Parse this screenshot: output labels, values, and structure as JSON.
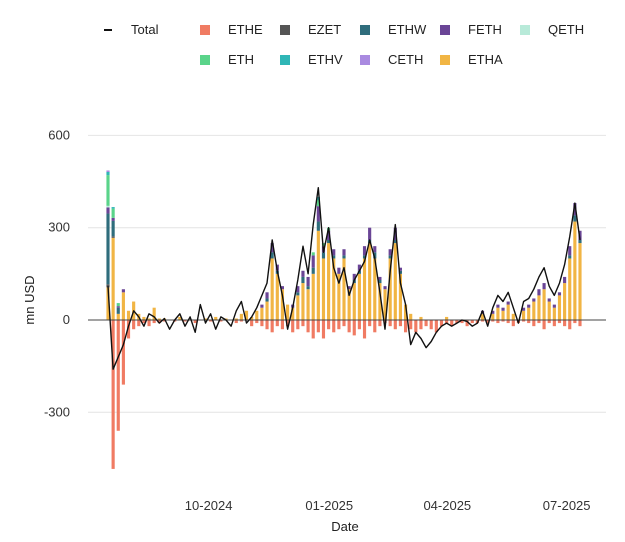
{
  "chart_data": {
    "type": "bar",
    "stacked": true,
    "title": "",
    "xlabel": "Date",
    "ylabel": "mn USD",
    "ylim": [
      -520,
      650
    ],
    "yticks": [
      -300,
      0,
      300,
      600
    ],
    "grid": true,
    "legend_position": "top",
    "x_range": [
      "2024-07-01",
      "2025-07-31"
    ],
    "xticks": [
      {
        "date": "2024-10-01",
        "label": "10-2024"
      },
      {
        "date": "2025-01-01",
        "label": "01-2025"
      },
      {
        "date": "2025-04-01",
        "label": "04-2025"
      },
      {
        "date": "2025-07-01",
        "label": "07-2025"
      }
    ],
    "legend": [
      {
        "name": "Total",
        "kind": "line",
        "color": "#111111"
      },
      {
        "name": "ETHE",
        "kind": "box",
        "color": "#f07b63"
      },
      {
        "name": "EZET",
        "kind": "box",
        "color": "#555555"
      },
      {
        "name": "ETHW",
        "kind": "box",
        "color": "#2f6d7c"
      },
      {
        "name": "FETH",
        "kind": "box",
        "color": "#6a4596"
      },
      {
        "name": "QETH",
        "kind": "box",
        "color": "#b8ead9"
      },
      {
        "name": "ETH",
        "kind": "box",
        "color": "#5ad48a"
      },
      {
        "name": "ETHV",
        "kind": "box",
        "color": "#2fb6b6"
      },
      {
        "name": "CETH",
        "kind": "box",
        "color": "#a98ae0"
      },
      {
        "name": "ETHA",
        "kind": "box",
        "color": "#f1b544"
      }
    ],
    "series": [
      {
        "name": "ETHA",
        "values": [
          106,
          267,
          20,
          90,
          30,
          60,
          20,
          10,
          5,
          40,
          5,
          5,
          0,
          0,
          10,
          0,
          0,
          0,
          0,
          5,
          0,
          10,
          0,
          5,
          0,
          5,
          20,
          30,
          10,
          30,
          40,
          60,
          200,
          150,
          100,
          50,
          40,
          80,
          120,
          100,
          150,
          290,
          200,
          250,
          200,
          150,
          200,
          100,
          120,
          150,
          200,
          250,
          200,
          120,
          100,
          200,
          250,
          150,
          50,
          20,
          0,
          10,
          0,
          0,
          0,
          0,
          10,
          0,
          0,
          0,
          0,
          0,
          0,
          20,
          0,
          20,
          40,
          30,
          50,
          20,
          0,
          30,
          40,
          60,
          80,
          100,
          60,
          40,
          80,
          120,
          200,
          320,
          250
        ]
      },
      {
        "name": "ETHE",
        "values": [
          0,
          -484,
          -360,
          -210,
          -60,
          -30,
          -20,
          -10,
          -20,
          -10,
          -10,
          -5,
          0,
          -5,
          0,
          -5,
          0,
          -10,
          0,
          0,
          -5,
          0,
          -5,
          0,
          0,
          -10,
          -5,
          0,
          -20,
          -10,
          -20,
          -30,
          -40,
          -20,
          -30,
          -20,
          -40,
          -30,
          -20,
          -40,
          -60,
          -40,
          -60,
          -30,
          -40,
          -30,
          -20,
          -40,
          -50,
          -30,
          -60,
          -20,
          -40,
          -20,
          -10,
          -20,
          -30,
          -20,
          -40,
          -30,
          -40,
          -30,
          -20,
          -30,
          -40,
          -20,
          -10,
          -20,
          -10,
          -10,
          -20,
          -10,
          -10,
          -5,
          -10,
          -5,
          -10,
          -5,
          -10,
          -20,
          -10,
          -5,
          -10,
          -20,
          -10,
          -30,
          -10,
          -20,
          -10,
          -20,
          -30,
          -10,
          -20
        ]
      },
      {
        "name": "EZET",
        "values": [
          10,
          5,
          0,
          0,
          0,
          0,
          0,
          0,
          0,
          0,
          0,
          0,
          0,
          0,
          0,
          0,
          0,
          0,
          0,
          0,
          0,
          0,
          0,
          0,
          0,
          0,
          0,
          0,
          0,
          0,
          0,
          0,
          0,
          0,
          0,
          0,
          0,
          0,
          0,
          0,
          0,
          0,
          0,
          0,
          0,
          0,
          0,
          0,
          0,
          0,
          0,
          0,
          0,
          0,
          0,
          0,
          0,
          0,
          0,
          0,
          0,
          0,
          0,
          0,
          0,
          0,
          0,
          0,
          0,
          0,
          0,
          0,
          0,
          0,
          0,
          0,
          0,
          0,
          0,
          0,
          0,
          0,
          0,
          0,
          0,
          0,
          0,
          0,
          0,
          0,
          0,
          0,
          0
        ]
      },
      {
        "name": "ETHW",
        "values": [
          230,
          50,
          20,
          0,
          0,
          0,
          0,
          0,
          0,
          0,
          0,
          0,
          0,
          0,
          0,
          0,
          0,
          0,
          0,
          0,
          0,
          0,
          0,
          0,
          0,
          0,
          0,
          0,
          0,
          0,
          0,
          10,
          20,
          10,
          0,
          0,
          0,
          10,
          20,
          10,
          20,
          30,
          20,
          10,
          10,
          0,
          10,
          0,
          10,
          10,
          10,
          10,
          20,
          10,
          0,
          10,
          10,
          10,
          0,
          0,
          0,
          0,
          0,
          0,
          0,
          0,
          0,
          0,
          0,
          0,
          0,
          0,
          0,
          0,
          0,
          0,
          0,
          0,
          0,
          0,
          0,
          0,
          0,
          0,
          0,
          0,
          0,
          0,
          0,
          0,
          10,
          20,
          10
        ]
      },
      {
        "name": "FETH",
        "values": [
          20,
          10,
          5,
          10,
          0,
          0,
          0,
          0,
          0,
          0,
          0,
          0,
          0,
          0,
          0,
          0,
          0,
          0,
          0,
          0,
          0,
          0,
          0,
          0,
          0,
          0,
          0,
          0,
          0,
          0,
          10,
          20,
          30,
          20,
          10,
          0,
          10,
          20,
          20,
          30,
          40,
          50,
          20,
          30,
          20,
          20,
          20,
          10,
          20,
          20,
          30,
          40,
          20,
          10,
          10,
          20,
          40,
          10,
          0,
          0,
          0,
          0,
          0,
          0,
          0,
          0,
          0,
          0,
          0,
          0,
          0,
          0,
          0,
          10,
          0,
          10,
          10,
          10,
          10,
          0,
          0,
          10,
          10,
          10,
          20,
          20,
          10,
          10,
          10,
          20,
          30,
          40,
          30
        ]
      },
      {
        "name": "QETH",
        "values": [
          5,
          0,
          0,
          0,
          0,
          0,
          0,
          0,
          0,
          0,
          0,
          0,
          0,
          0,
          0,
          0,
          0,
          0,
          0,
          0,
          0,
          0,
          0,
          0,
          0,
          0,
          0,
          0,
          0,
          0,
          0,
          0,
          0,
          0,
          0,
          0,
          0,
          0,
          0,
          0,
          0,
          0,
          0,
          0,
          0,
          0,
          0,
          0,
          0,
          0,
          0,
          0,
          0,
          0,
          0,
          0,
          0,
          0,
          0,
          0,
          0,
          0,
          0,
          0,
          0,
          0,
          0,
          0,
          0,
          0,
          0,
          0,
          0,
          0,
          0,
          0,
          0,
          0,
          0,
          0,
          0,
          0,
          0,
          0,
          0,
          0,
          0,
          0,
          0,
          0,
          0,
          0,
          0
        ]
      },
      {
        "name": "ETH",
        "values": [
          100,
          30,
          10,
          0,
          0,
          0,
          0,
          0,
          0,
          0,
          0,
          0,
          0,
          0,
          0,
          0,
          0,
          0,
          0,
          0,
          0,
          0,
          0,
          0,
          0,
          0,
          0,
          0,
          0,
          0,
          0,
          0,
          0,
          0,
          0,
          0,
          0,
          0,
          0,
          0,
          10,
          20,
          10,
          10,
          0,
          0,
          0,
          0,
          0,
          0,
          0,
          0,
          0,
          0,
          0,
          0,
          0,
          0,
          0,
          0,
          0,
          0,
          0,
          0,
          0,
          0,
          0,
          0,
          0,
          0,
          0,
          0,
          0,
          0,
          0,
          0,
          0,
          0,
          0,
          0,
          0,
          0,
          0,
          0,
          0,
          0,
          0,
          0,
          0,
          0,
          0,
          0,
          0
        ]
      },
      {
        "name": "ETHV",
        "values": [
          10,
          5,
          0,
          0,
          0,
          0,
          0,
          0,
          0,
          0,
          0,
          0,
          0,
          0,
          0,
          0,
          0,
          0,
          0,
          0,
          0,
          0,
          0,
          0,
          0,
          0,
          0,
          0,
          0,
          0,
          0,
          0,
          0,
          0,
          0,
          0,
          0,
          0,
          0,
          0,
          0,
          10,
          0,
          0,
          0,
          0,
          0,
          0,
          0,
          0,
          0,
          0,
          0,
          0,
          0,
          0,
          0,
          0,
          0,
          0,
          0,
          0,
          0,
          0,
          0,
          0,
          0,
          0,
          0,
          0,
          0,
          0,
          0,
          0,
          0,
          0,
          0,
          0,
          0,
          0,
          0,
          0,
          0,
          0,
          0,
          0,
          0,
          0,
          0,
          0,
          0,
          0,
          0
        ]
      },
      {
        "name": "CETH",
        "values": [
          5,
          0,
          0,
          0,
          0,
          0,
          0,
          0,
          0,
          0,
          0,
          0,
          0,
          0,
          0,
          0,
          0,
          0,
          0,
          0,
          0,
          0,
          0,
          0,
          0,
          0,
          0,
          0,
          0,
          0,
          0,
          0,
          0,
          0,
          0,
          0,
          0,
          0,
          0,
          0,
          0,
          0,
          0,
          0,
          0,
          0,
          0,
          0,
          0,
          0,
          0,
          0,
          0,
          0,
          0,
          0,
          0,
          0,
          0,
          0,
          0,
          0,
          0,
          0,
          0,
          0,
          0,
          0,
          0,
          0,
          0,
          0,
          0,
          0,
          0,
          0,
          0,
          0,
          0,
          0,
          0,
          0,
          0,
          0,
          0,
          0,
          0,
          0,
          0,
          0,
          0,
          0,
          0
        ]
      }
    ],
    "total": {
      "name": "Total",
      "values": [
        110,
        -160,
        -120,
        -80,
        -20,
        30,
        10,
        -20,
        20,
        10,
        -10,
        5,
        -30,
        0,
        20,
        -20,
        10,
        -40,
        50,
        -10,
        20,
        -30,
        10,
        0,
        -20,
        30,
        60,
        -10,
        10,
        40,
        80,
        120,
        260,
        160,
        80,
        -30,
        40,
        130,
        240,
        150,
        310,
        430,
        220,
        300,
        170,
        120,
        170,
        80,
        130,
        160,
        190,
        260,
        200,
        90,
        -30,
        160,
        310,
        120,
        50,
        -80,
        -40,
        -60,
        -90,
        -70,
        -40,
        -20,
        -10,
        -20,
        -10,
        0,
        -5,
        -20,
        -10,
        30,
        -20,
        40,
        80,
        60,
        90,
        40,
        -10,
        60,
        70,
        100,
        140,
        170,
        110,
        80,
        120,
        180,
        270,
        380,
        260
      ]
    }
  }
}
